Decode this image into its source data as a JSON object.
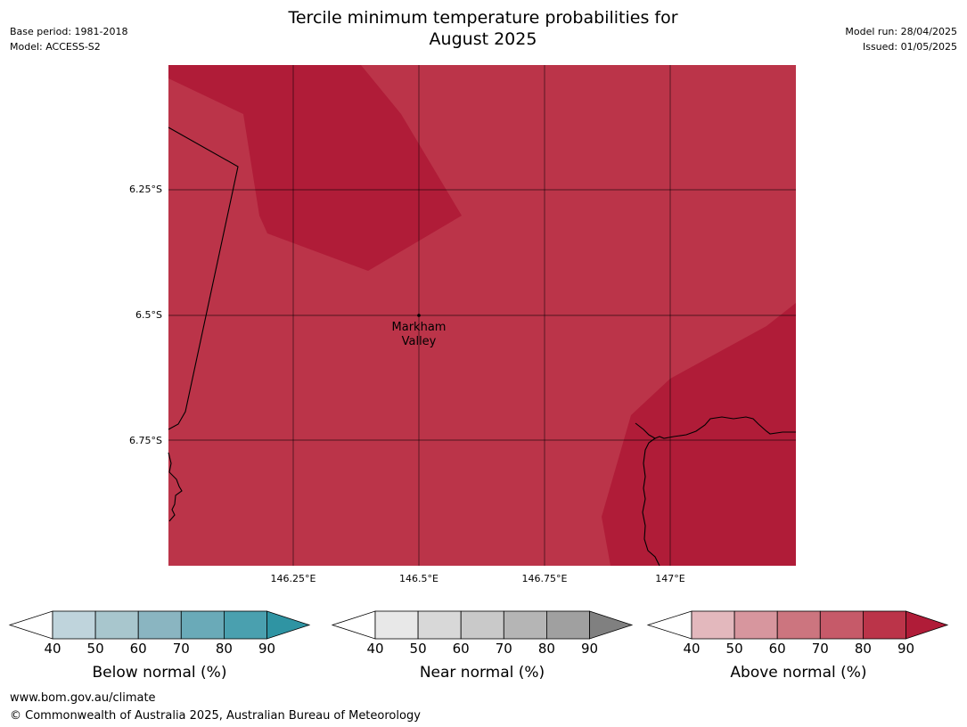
{
  "title_line1": "Tercile minimum temperature probabilities for",
  "title_line2": "August 2025",
  "base_period": "Base period: 1981-2018",
  "model": "Model: ACCESS-S2",
  "model_run": "Model run: 28/04/2025",
  "issued": "Issued: 01/05/2025",
  "map": {
    "place_label_line1": "Markham",
    "place_label_line2": "Valley",
    "lat_ticks": [
      "6.25°S",
      "6.5°S",
      "6.75°S"
    ],
    "lon_ticks": [
      "146.25°E",
      "146.5°E",
      "146.75°E",
      "147°E"
    ],
    "colors": {
      "above_80": "#bb3449",
      "above_90": "#b01c38",
      "grid": "#000000"
    }
  },
  "colorbars": [
    {
      "label": "Below normal (%)",
      "ticks": [
        "40",
        "50",
        "60",
        "70",
        "80",
        "90"
      ],
      "colors": [
        "#bfd4dc",
        "#a8c6cd",
        "#8ab5c1",
        "#6aaab8",
        "#4aa0af",
        "#2f94a3"
      ]
    },
    {
      "label": "Near normal (%)",
      "ticks": [
        "40",
        "50",
        "60",
        "70",
        "80",
        "90"
      ],
      "colors": [
        "#e8e8e8",
        "#d8d8d8",
        "#c9c9c9",
        "#b5b5b5",
        "#a0a0a0",
        "#808080"
      ]
    },
    {
      "label": "Above normal (%)",
      "ticks": [
        "40",
        "50",
        "60",
        "70",
        "80",
        "90"
      ],
      "colors": [
        "#e3b8bd",
        "#d7969e",
        "#cc757f",
        "#c65a69",
        "#bb3449",
        "#b01c38"
      ]
    }
  ],
  "footer_url": "www.bom.gov.au/climate",
  "footer_copyright": "© Commonwealth of Australia 2025, Australian Bureau of Meteorology"
}
